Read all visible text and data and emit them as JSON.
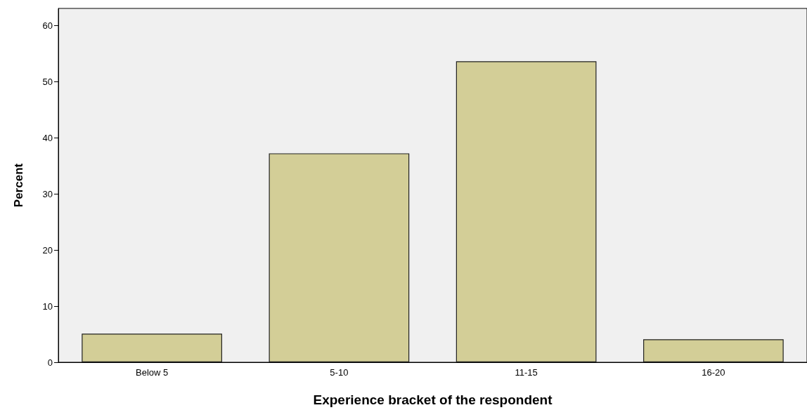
{
  "chart_data": {
    "type": "bar",
    "xlabel": "Experience bracket of the respondent",
    "ylabel": "Percent",
    "categories": [
      "Below 5",
      "5-10",
      "11-15",
      "16-20"
    ],
    "values": [
      5.1,
      37.2,
      53.6,
      4.1
    ],
    "color": "#d3ce97",
    "ylim": [
      0,
      63
    ],
    "yticks": [
      0,
      10,
      20,
      30,
      40,
      50,
      60
    ],
    "grid": false
  }
}
